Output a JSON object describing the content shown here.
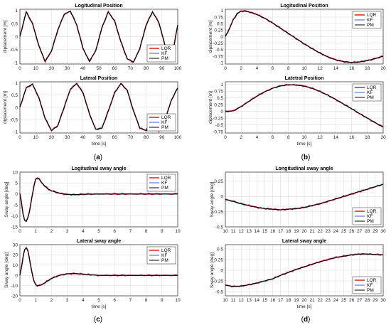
{
  "colors": {
    "LQR": "#e8262b",
    "KF": "#3b5bd6",
    "PM": "#000000",
    "grid": "#d9d9d9"
  },
  "panel_labels": [
    {
      "text": "(a)",
      "bold": "a"
    },
    {
      "text": "(b)",
      "bold": "b"
    },
    {
      "text": "(c)",
      "bold": "c"
    },
    {
      "text": "(d)",
      "bold": "d"
    }
  ],
  "chart_data": [
    {
      "type": "line",
      "panel": "a-top",
      "title": "Logitudinal Position",
      "xlabel": "",
      "ylabel": "diplacement [m]",
      "xlim": [
        0,
        100
      ],
      "ylim": [
        -1.05,
        1.05
      ],
      "xticks": [
        0,
        10,
        20,
        30,
        40,
        50,
        60,
        70,
        80,
        90,
        100
      ],
      "yticks": [
        -1,
        -0.5,
        0,
        0.5,
        1
      ],
      "yticklabels": [
        "-1",
        "-0.5",
        "0",
        "0.5",
        "1"
      ],
      "legend": [
        "LQR",
        "KF",
        "PM"
      ],
      "legend_position": "bottom-right",
      "grid": true,
      "series": [
        {
          "name": "PM",
          "x": [
            0,
            4,
            8,
            12,
            16,
            20,
            24,
            28,
            32,
            36,
            40,
            44,
            48,
            52,
            56,
            60,
            64,
            68,
            72,
            76,
            80,
            84,
            88,
            92,
            96,
            100
          ],
          "y": [
            0,
            0.95,
            0.5,
            -0.35,
            -0.95,
            -0.55,
            0.25,
            0.85,
            0.98,
            0.45,
            -0.45,
            -0.95,
            -0.55,
            0.35,
            0.95,
            0.6,
            -0.2,
            -0.85,
            -0.98,
            -0.45,
            0.45,
            0.95,
            0.55,
            -0.35,
            -0.9,
            0.45
          ]
        }
      ]
    },
    {
      "type": "line",
      "panel": "a-bottom",
      "title": "Lateral Position",
      "xlabel": "time [s]",
      "ylabel": "diplacement [m]",
      "xlim": [
        0,
        100
      ],
      "ylim": [
        -1.05,
        1.05
      ],
      "xticks": [
        0,
        10,
        20,
        30,
        40,
        50,
        60,
        70,
        80,
        90,
        100
      ],
      "yticks": [
        -1,
        -0.5,
        0,
        0.5,
        1
      ],
      "yticklabels": [
        "-1",
        "-0.5",
        "0",
        "0.5",
        "1"
      ],
      "legend": [
        "LQR",
        "KF",
        "PM"
      ],
      "legend_position": "bottom-right",
      "grid": true,
      "series": [
        {
          "name": "PM",
          "x": [
            0,
            4,
            8,
            12,
            16,
            20,
            24,
            28,
            32,
            36,
            40,
            44,
            48,
            52,
            56,
            60,
            64,
            68,
            72,
            76,
            80,
            84,
            88,
            92,
            96,
            100
          ],
          "y": [
            0,
            0.8,
            0.95,
            0.4,
            -0.45,
            -0.95,
            -0.75,
            0,
            0.75,
            0.98,
            0.6,
            -0.25,
            -0.9,
            -0.85,
            -0.15,
            0.6,
            0.98,
            0.7,
            -0.15,
            -0.85,
            -0.95,
            -0.35,
            -0.95,
            -0.5,
            0.3,
            0.8
          ]
        }
      ]
    },
    {
      "type": "line",
      "panel": "b-top",
      "title": "Logitudinal Position",
      "xlabel": "",
      "ylabel": "diplacement [m]",
      "xlim": [
        0,
        20
      ],
      "ylim": [
        -1.05,
        1.05
      ],
      "xticks": [
        0,
        2,
        4,
        6,
        8,
        10,
        12,
        14,
        16,
        18,
        20
      ],
      "yticks": [
        -1,
        -0.75,
        -0.5,
        -0.25,
        0,
        0.25,
        0.5,
        0.75,
        1
      ],
      "yticklabels": [
        "-1",
        "-0.75",
        "-0.5",
        "-0.25",
        "0",
        "0.25",
        "0.5",
        "0.75",
        "1"
      ],
      "legend": [
        "LQR",
        "KF",
        "PM"
      ],
      "legend_position": "top-right",
      "grid": true,
      "series": [
        {
          "name": "PM",
          "x": [
            0,
            0.5,
            1,
            1.5,
            2,
            2.5,
            3,
            4,
            5,
            6,
            7,
            8,
            9,
            10,
            11,
            12,
            13,
            14,
            15,
            16,
            17,
            18,
            19,
            20
          ],
          "y": [
            0,
            0.3,
            0.65,
            0.88,
            0.98,
            0.98,
            0.95,
            0.85,
            0.7,
            0.52,
            0.32,
            0.12,
            -0.08,
            -0.28,
            -0.46,
            -0.63,
            -0.78,
            -0.89,
            -0.96,
            -0.99,
            -0.97,
            -0.92,
            -0.84,
            -0.75
          ]
        }
      ]
    },
    {
      "type": "line",
      "panel": "b-bottom",
      "title": "Latetral Position",
      "xlabel": "time [s]",
      "ylabel": "diplacement [m]",
      "xlim": [
        0,
        20
      ],
      "ylim": [
        -0.8,
        1.1
      ],
      "xticks": [
        0,
        2,
        4,
        6,
        8,
        10,
        12,
        14,
        16,
        18,
        20
      ],
      "yticks": [
        -0.75,
        -0.5,
        -0.25,
        0,
        0.25,
        0.5,
        0.75,
        1
      ],
      "yticklabels": [
        "-0.75",
        "-0.5",
        "-0.25",
        "0",
        "0.25",
        "0.5",
        "0.75",
        "1"
      ],
      "legend": [
        "LQR",
        "KF",
        "PM"
      ],
      "legend_position": "top-right",
      "grid": true,
      "series": [
        {
          "name": "PM",
          "x": [
            0,
            1,
            2,
            3,
            4,
            5,
            6,
            7,
            8,
            9,
            10,
            11,
            12,
            13,
            14,
            15,
            16,
            17,
            18,
            19,
            20
          ],
          "y": [
            0,
            0.02,
            0.18,
            0.38,
            0.57,
            0.73,
            0.86,
            0.95,
            0.99,
            0.98,
            0.94,
            0.86,
            0.74,
            0.6,
            0.44,
            0.27,
            0.1,
            -0.08,
            -0.25,
            -0.42,
            -0.58
          ]
        }
      ]
    },
    {
      "type": "line",
      "panel": "c-top",
      "title": "Logitudinal sway angle",
      "xlabel": "",
      "ylabel": "Sway angle [deg]",
      "xlim": [
        0,
        10
      ],
      "ylim": [
        -15,
        10
      ],
      "xticks": [
        0,
        1,
        2,
        3,
        4,
        5,
        6,
        7,
        8,
        9,
        10
      ],
      "yticks": [
        -15,
        -10,
        -5,
        0,
        5,
        10
      ],
      "yticklabels": [
        "-15",
        "-10",
        "-5",
        "0",
        "5",
        "10"
      ],
      "legend": [
        "LQR",
        "KF",
        "PM"
      ],
      "legend_position": "top-right",
      "grid": true,
      "series": [
        {
          "name": "PM",
          "x": [
            0,
            0.1,
            0.2,
            0.3,
            0.4,
            0.5,
            0.6,
            0.7,
            0.8,
            0.9,
            1.0,
            1.1,
            1.2,
            1.4,
            1.6,
            1.8,
            2.0,
            2.3,
            2.6,
            3.0,
            3.5,
            4,
            5,
            6,
            7,
            8,
            9,
            10
          ],
          "y": [
            0,
            -4,
            -9,
            -12,
            -12.5,
            -11,
            -8,
            -4,
            0,
            4,
            6.8,
            7.3,
            7,
            5,
            3.5,
            2.2,
            1.5,
            0.8,
            0.2,
            -0.2,
            -0.3,
            -0.1,
            0,
            0,
            0,
            0,
            0,
            0
          ]
        }
      ]
    },
    {
      "type": "line",
      "panel": "c-bottom",
      "title": "Lateral sway angle",
      "xlabel": "time [s]",
      "ylabel": "Sway angle [deg]",
      "xlim": [
        0,
        10
      ],
      "ylim": [
        -20,
        30
      ],
      "xticks": [
        0,
        1,
        2,
        3,
        4,
        5,
        6,
        7,
        8,
        9,
        10
      ],
      "yticks": [
        -20,
        -10,
        0,
        10,
        20,
        30
      ],
      "yticklabels": [
        "-20",
        "-10",
        "0",
        "10",
        "20",
        "30"
      ],
      "legend": [
        "LQR",
        "KF",
        "PM"
      ],
      "legend_position": "top-right",
      "grid": true,
      "series": [
        {
          "name": "PM",
          "x": [
            0,
            0.1,
            0.2,
            0.3,
            0.4,
            0.5,
            0.6,
            0.7,
            0.8,
            0.9,
            1.0,
            1.1,
            1.2,
            1.4,
            1.6,
            1.8,
            2.0,
            2.5,
            3.0,
            3.5,
            4,
            4.5,
            5,
            6,
            7,
            8,
            9,
            10
          ],
          "y": [
            0,
            8,
            18,
            25,
            27,
            24,
            17,
            8,
            0,
            -6,
            -9,
            -10,
            -10,
            -9,
            -7,
            -5,
            -3,
            0,
            1.5,
            1.8,
            1.2,
            0.5,
            0,
            0,
            0,
            0,
            0,
            0
          ]
        }
      ]
    },
    {
      "type": "line",
      "panel": "d-top",
      "title": "Longitudinal sway angle",
      "xlabel": "",
      "ylabel": "Sway angle [deg]",
      "xlim": [
        10,
        30
      ],
      "ylim": [
        -0.5,
        0.4
      ],
      "xticks": [
        10,
        11,
        12,
        13,
        14,
        15,
        16,
        17,
        18,
        19,
        20,
        21,
        22,
        23,
        24,
        25,
        26,
        27,
        28,
        29,
        30
      ],
      "yticks": [
        -0.5,
        -0.25,
        0,
        0.25
      ],
      "yticklabels": [
        "-0.5",
        "-0.25",
        "0",
        "0.25"
      ],
      "legend": [
        "LQR",
        "KF",
        "PM"
      ],
      "legend_position": "bottom-right",
      "grid": true,
      "series": [
        {
          "name": "PM",
          "x": [
            10,
            11,
            12,
            13,
            14,
            15,
            16,
            17,
            18,
            19,
            20,
            21,
            22,
            23,
            24,
            25,
            26,
            27,
            28,
            29,
            30
          ],
          "y": [
            -0.05,
            -0.08,
            -0.12,
            -0.15,
            -0.18,
            -0.2,
            -0.21,
            -0.22,
            -0.21,
            -0.2,
            -0.18,
            -0.15,
            -0.12,
            -0.08,
            -0.04,
            0,
            0.04,
            0.08,
            0.12,
            0.16,
            0.2
          ]
        }
      ]
    },
    {
      "type": "line",
      "panel": "d-bottom",
      "title": "Lateral sway angle",
      "xlabel": "time [s]",
      "ylabel": "Sway angle [deg]",
      "xlim": [
        10,
        30
      ],
      "ylim": [
        -0.6,
        0.6
      ],
      "xticks": [
        10,
        11,
        12,
        13,
        14,
        15,
        16,
        17,
        18,
        19,
        20,
        21,
        22,
        23,
        24,
        25,
        26,
        27,
        28,
        29,
        30
      ],
      "yticks": [
        -0.5,
        -0.25,
        0,
        0.25,
        0.5
      ],
      "yticklabels": [
        "-0.5",
        "-0.25",
        "0",
        "0.25",
        "0.5"
      ],
      "legend": [
        "LQR",
        "KF",
        "PM"
      ],
      "legend_position": "bottom-right",
      "grid": true,
      "series": [
        {
          "name": "PM",
          "x": [
            10,
            11,
            12,
            13,
            14,
            15,
            16,
            17,
            18,
            19,
            20,
            21,
            22,
            23,
            24,
            25,
            26,
            27,
            28,
            29,
            30
          ],
          "y": [
            -0.35,
            -0.38,
            -0.37,
            -0.34,
            -0.3,
            -0.25,
            -0.2,
            -0.12,
            -0.05,
            0.02,
            0.08,
            0.14,
            0.2,
            0.25,
            0.3,
            0.33,
            0.36,
            0.38,
            0.38,
            0.37,
            0.36
          ]
        }
      ]
    }
  ]
}
